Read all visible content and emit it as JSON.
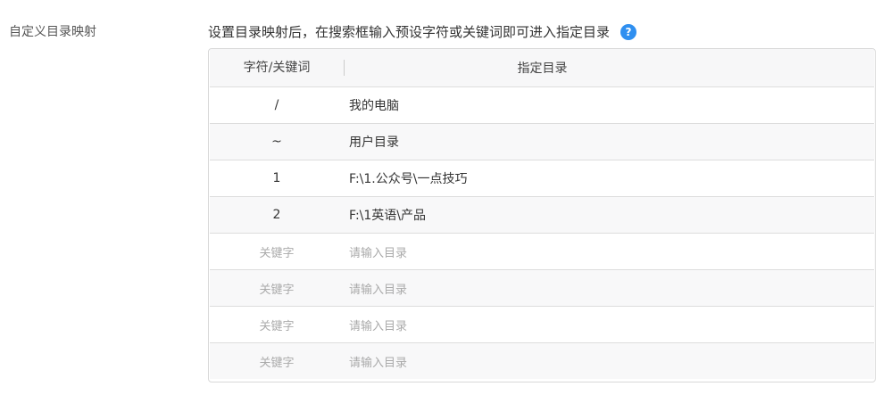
{
  "section_label": "自定义目录映射",
  "description": "设置目录映射后，在搜索框输入预设字符或关键词即可进入指定目录",
  "help_icon": "?",
  "table": {
    "headers": [
      "字符/关键词",
      "指定目录"
    ],
    "rows": [
      {
        "key": "/",
        "dir": "我的电脑"
      },
      {
        "key": "~",
        "dir": "用户目录"
      },
      {
        "key": "1",
        "dir": "F:\\1.公众号\\一点技巧"
      },
      {
        "key": "2",
        "dir": "F:\\1英语\\产品"
      }
    ],
    "empty_rows": [
      {
        "key_placeholder": "关键字",
        "dir_placeholder": "请输入目录"
      },
      {
        "key_placeholder": "关键字",
        "dir_placeholder": "请输入目录"
      },
      {
        "key_placeholder": "关键字",
        "dir_placeholder": "请输入目录"
      },
      {
        "key_placeholder": "关键字",
        "dir_placeholder": "请输入目录"
      }
    ]
  },
  "colors": {
    "help_icon": "#2f8ff0"
  }
}
